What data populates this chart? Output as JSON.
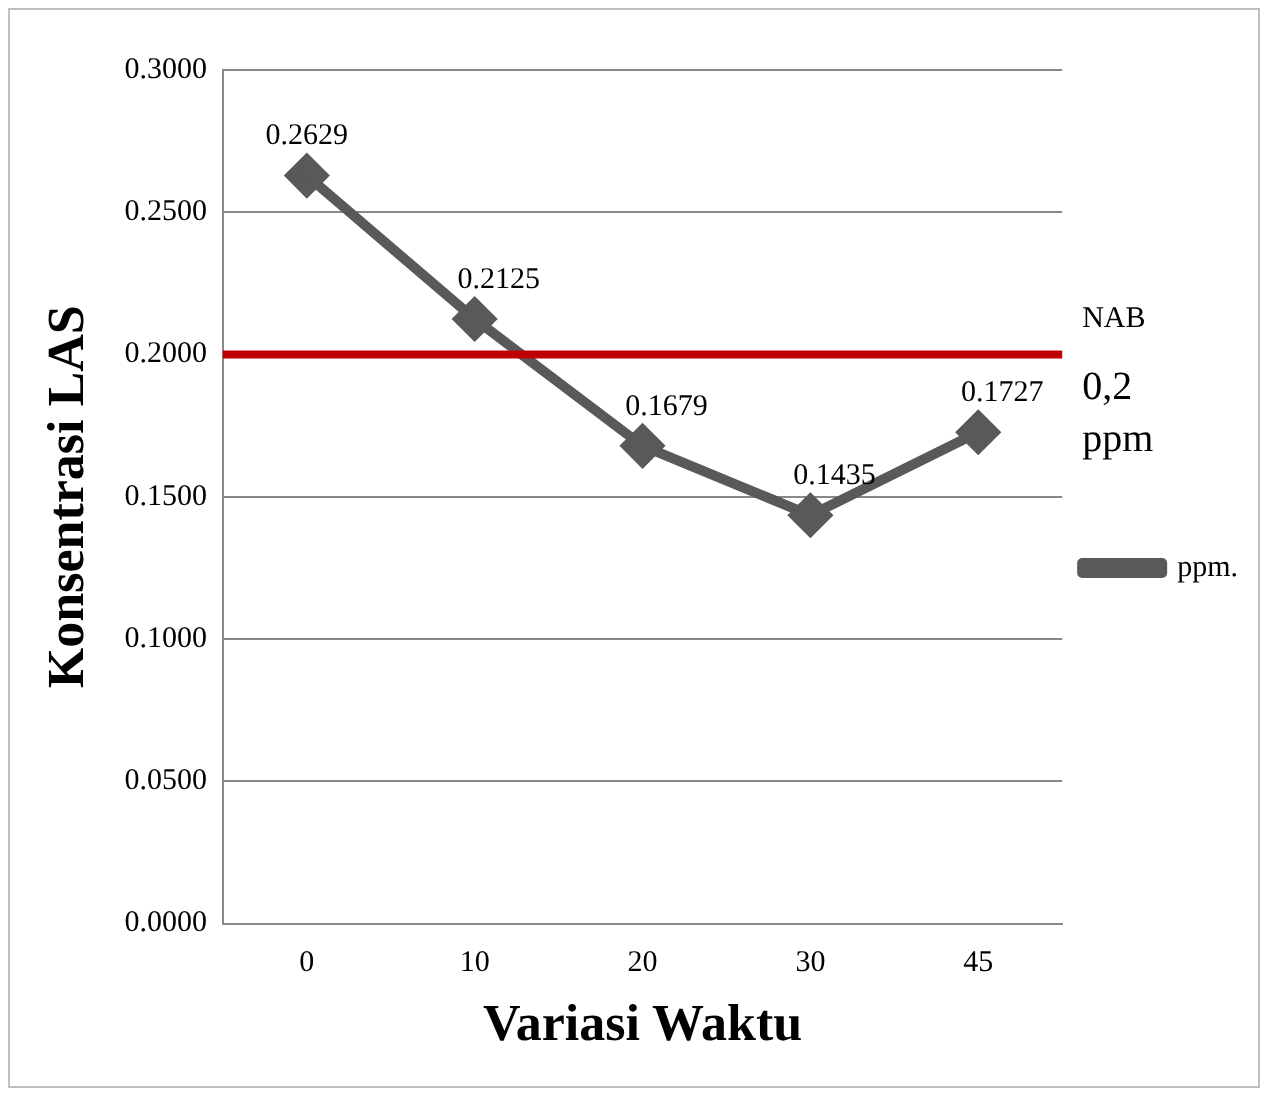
{
  "chart_data": {
    "type": "line",
    "xlabel": "Variasi Waktu",
    "ylabel": "Konsentrasi LAS",
    "categories": [
      "0",
      "10",
      "20",
      "30",
      "45"
    ],
    "series": [
      {
        "name": "ppm.",
        "color": "#595959",
        "values": [
          0.2629,
          0.2125,
          0.1679,
          0.1435,
          0.1727
        ]
      }
    ],
    "ylim": [
      0,
      0.3
    ],
    "yticks": [
      {
        "value": 0,
        "label": "0.0000"
      },
      {
        "value": 0.05,
        "label": "0.0500"
      },
      {
        "value": 0.1,
        "label": "0.1000"
      },
      {
        "value": 0.15,
        "label": "0.1500"
      },
      {
        "value": 0.2,
        "label": "0.2000"
      },
      {
        "value": 0.25,
        "label": "0.2500"
      },
      {
        "value": 0.3,
        "label": "0.3000"
      }
    ],
    "ref_lines": [
      {
        "axis": "y",
        "value": 0.2,
        "label": "NAB 0,2 ppm",
        "color": "#c00000"
      }
    ],
    "grid": "y",
    "legend": "right",
    "marker": "diamond",
    "line_style": "solid",
    "data_labels": true
  }
}
